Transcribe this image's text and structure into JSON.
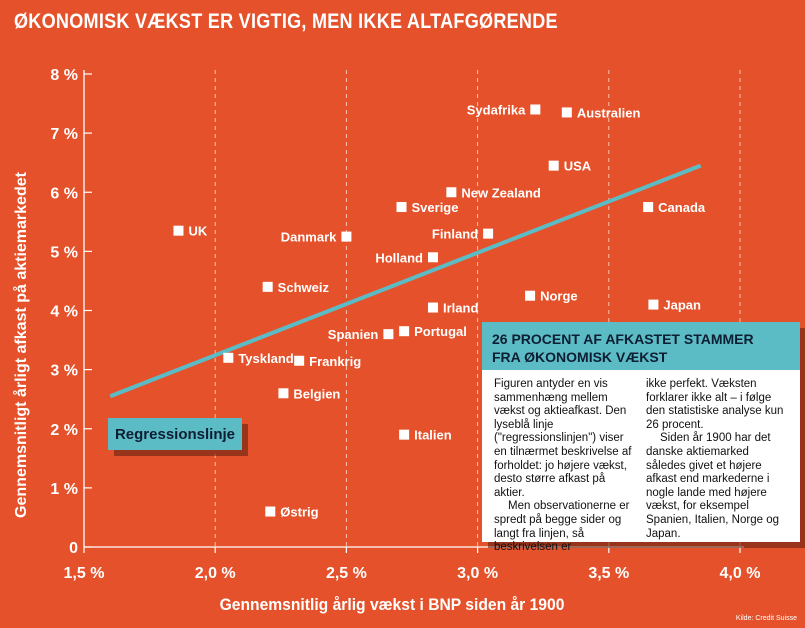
{
  "title": "ØKONOMISK VÆKST ER VIGTIG, MEN IKKE ALTAFGØRENDE",
  "chart_data": {
    "type": "scatter",
    "xlabel": "Gennemsnitlig årlig vækst i BNP siden år 1900",
    "ylabel": "Gennemsnitligt årligt afkast på aktiemarkedet",
    "xlim": [
      1.5,
      4.0
    ],
    "ylim": [
      0,
      8
    ],
    "x_ticks": [
      {
        "value": 1.5,
        "label": "1,5 %"
      },
      {
        "value": 2.0,
        "label": "2,0 %"
      },
      {
        "value": 2.5,
        "label": "2,5 %"
      },
      {
        "value": 3.0,
        "label": "3,0 %"
      },
      {
        "value": 3.5,
        "label": "3,5 %"
      },
      {
        "value": 4.0,
        "label": "4,0 %"
      }
    ],
    "y_ticks": [
      {
        "value": 0,
        "label": "0"
      },
      {
        "value": 1,
        "label": "1 %"
      },
      {
        "value": 2,
        "label": "2 %"
      },
      {
        "value": 3,
        "label": "3 %"
      },
      {
        "value": 4,
        "label": "4 %"
      },
      {
        "value": 5,
        "label": "5 %"
      },
      {
        "value": 6,
        "label": "6 %"
      },
      {
        "value": 7,
        "label": "7 %"
      },
      {
        "value": 8,
        "label": "8 %"
      }
    ],
    "grid": "vertical dashed",
    "points": [
      {
        "label": "UK",
        "x": 1.86,
        "y": 5.35,
        "side": "right"
      },
      {
        "label": "Tyskland",
        "x": 2.05,
        "y": 3.2,
        "side": "right"
      },
      {
        "label": "Schweiz",
        "x": 2.2,
        "y": 4.4,
        "side": "right"
      },
      {
        "label": "Østrig",
        "x": 2.21,
        "y": 0.6,
        "side": "right"
      },
      {
        "label": "Belgien",
        "x": 2.26,
        "y": 2.6,
        "side": "right"
      },
      {
        "label": "Frankrig",
        "x": 2.32,
        "y": 3.15,
        "side": "right"
      },
      {
        "label": "Danmark",
        "x": 2.5,
        "y": 5.25,
        "side": "left"
      },
      {
        "label": "Spanien",
        "x": 2.66,
        "y": 3.6,
        "side": "left"
      },
      {
        "label": "Portugal",
        "x": 2.72,
        "y": 3.65,
        "side": "right"
      },
      {
        "label": "Sverige",
        "x": 2.71,
        "y": 5.75,
        "side": "right"
      },
      {
        "label": "Italien",
        "x": 2.72,
        "y": 1.9,
        "side": "right"
      },
      {
        "label": "Holland",
        "x": 2.83,
        "y": 4.9,
        "side": "left"
      },
      {
        "label": "Irland",
        "x": 2.83,
        "y": 4.05,
        "side": "right"
      },
      {
        "label": "New Zealand",
        "x": 2.9,
        "y": 6.0,
        "side": "right"
      },
      {
        "label": "Finland",
        "x": 3.04,
        "y": 5.3,
        "side": "left"
      },
      {
        "label": "Sydafrika",
        "x": 3.22,
        "y": 7.4,
        "side": "left"
      },
      {
        "label": "Norge",
        "x": 3.2,
        "y": 4.25,
        "side": "right"
      },
      {
        "label": "USA",
        "x": 3.29,
        "y": 6.45,
        "side": "right"
      },
      {
        "label": "Australien",
        "x": 3.34,
        "y": 7.35,
        "side": "right"
      },
      {
        "label": "Canada",
        "x": 3.65,
        "y": 5.75,
        "side": "right"
      },
      {
        "label": "Japan",
        "x": 3.67,
        "y": 4.1,
        "side": "right"
      }
    ],
    "regression_line": {
      "label": "Regressionslinje",
      "x": [
        1.6,
        3.85
      ],
      "y": [
        2.55,
        6.45
      ],
      "color": "#5cbcc6"
    }
  },
  "info_box": {
    "heading_line1": "26 PROCENT AF AFKASTET STAMMER",
    "heading_line2": "FRA ØKONOMISK VÆKST",
    "col1_p1": "Figuren antyder en vis sammenhæng mellem vækst og aktieafkast. Den lyseblå linje (\"regressionslinjen\") viser en tilnærmet beskrivelse af forholdet: jo højere vækst, desto større afkast på aktier.",
    "col1_p2": "Men observationerne er spredt på begge sider og langt fra linjen, så beskrivelsen er",
    "col2_p1": "ikke perfekt. Væksten forklarer ikke alt – i følge den statistiske analyse kun 26 procent.",
    "col2_p2": "Siden år 1900 har det danske aktiemarked således givet et højere afkast end markederne i nogle lande med højere vækst, for eksempel Spanien, Italien, Norge og Japan."
  },
  "source": "Kilde: Credit Suisse",
  "colors": {
    "background": "#e5512a",
    "accent": "#5cbcc6",
    "marker": "#ffffff",
    "text_dark": "#0d1e33"
  }
}
